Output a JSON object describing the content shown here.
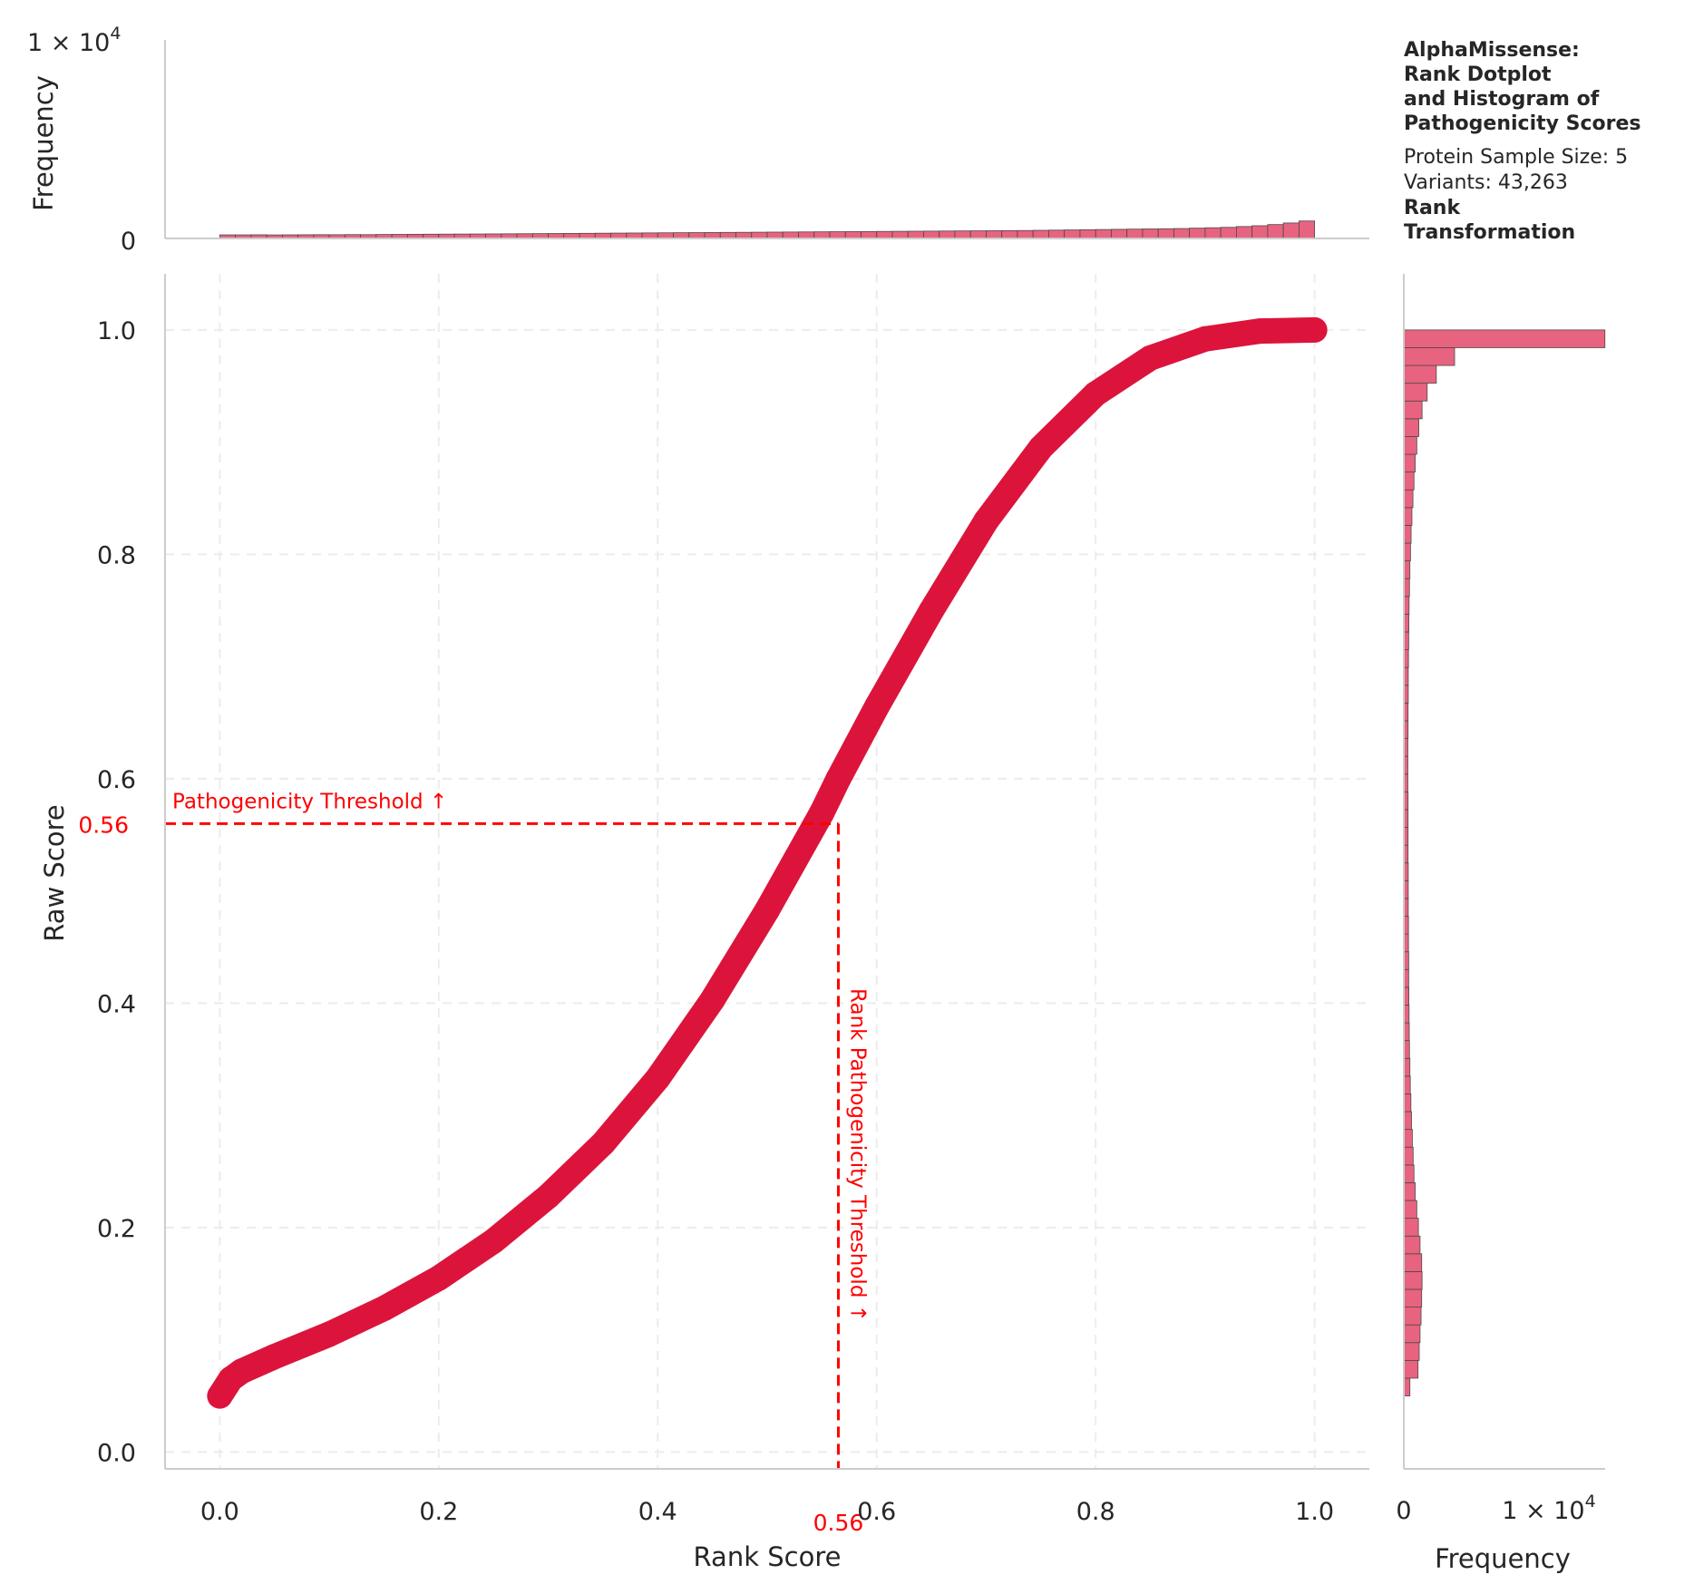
{
  "chart_data": [
    {
      "panel": "main",
      "type": "scatter",
      "xlabel": "Rank Score",
      "ylabel": "Raw Score",
      "xlim": [
        -0.05,
        1.05
      ],
      "ylim": [
        -0.015,
        1.05
      ],
      "xticks": [
        "0.0",
        "0.2",
        "0.4",
        "0.6",
        "0.8",
        "1.0"
      ],
      "yticks": [
        "0.0",
        "0.2",
        "0.4",
        "0.6",
        "0.8",
        "1.0"
      ],
      "grid": true,
      "color": "#dc143c",
      "series": [
        {
          "x": [
            0.0,
            0.01,
            0.02,
            0.05,
            0.1,
            0.15,
            0.2,
            0.25,
            0.3,
            0.35,
            0.4,
            0.45,
            0.5,
            0.55,
            0.565,
            0.6,
            0.65,
            0.7,
            0.75,
            0.8,
            0.85,
            0.9,
            0.95,
            1.0
          ],
          "y": [
            0.05,
            0.065,
            0.072,
            0.085,
            0.105,
            0.128,
            0.155,
            0.188,
            0.228,
            0.275,
            0.333,
            0.403,
            0.483,
            0.57,
            0.6,
            0.664,
            0.75,
            0.83,
            0.895,
            0.943,
            0.975,
            0.992,
            0.999,
            1.0
          ]
        }
      ],
      "threshold": {
        "value": 0.56,
        "value_label": "0.56",
        "rank_value": 0.565,
        "rank_value_label": "0.56",
        "horizontal_label": "Pathogenicity Threshold ↑",
        "vertical_label": "Rank Pathogenicity Threshold ↑",
        "color": "#ff0000"
      }
    },
    {
      "panel": "top-histogram",
      "type": "bar",
      "xlabel": "",
      "ylabel": "Frequency",
      "ylim": [
        0,
        10000
      ],
      "yticks": [
        "0"
      ],
      "offset_label": "1 × 10",
      "offset_exp": "4",
      "bin_range": [
        0,
        1
      ],
      "values": [
        180,
        180,
        185,
        178,
        182,
        186,
        190,
        188,
        195,
        192,
        200,
        205,
        210,
        215,
        218,
        222,
        225,
        230,
        235,
        240,
        245,
        250,
        255,
        260,
        265,
        270,
        275,
        280,
        285,
        290,
        295,
        300,
        305,
        310,
        315,
        320,
        325,
        330,
        335,
        340,
        345,
        350,
        355,
        360,
        365,
        370,
        375,
        380,
        385,
        390,
        395,
        400,
        410,
        420,
        430,
        440,
        450,
        460,
        470,
        480,
        490,
        500,
        520,
        540,
        560,
        600,
        640,
        700,
        780,
        880
      ],
      "color": "#e8637f",
      "edge_color": "#4a4a4a"
    },
    {
      "panel": "right-histogram",
      "type": "bar",
      "orientation": "horizontal",
      "xlabel": "Frequency",
      "ylabel": "",
      "xlim": [
        0,
        10000
      ],
      "xticks": [
        "0"
      ],
      "offset_label": "1 × 10",
      "offset_exp": "4",
      "bin_range": [
        0.05,
        1.0
      ],
      "values": [
        300,
        700,
        760,
        800,
        850,
        880,
        900,
        880,
        800,
        720,
        640,
        560,
        500,
        460,
        420,
        380,
        350,
        320,
        300,
        280,
        270,
        260,
        250,
        240,
        240,
        230,
        230,
        220,
        220,
        220,
        210,
        210,
        210,
        210,
        200,
        200,
        200,
        210,
        210,
        220,
        220,
        230,
        240,
        250,
        260,
        280,
        300,
        330,
        360,
        400,
        450,
        500,
        560,
        640,
        740,
        900,
        1150,
        1600,
        2500,
        9900
      ],
      "color": "#e8637f",
      "edge_color": "#4a4a4a"
    }
  ],
  "title_block": {
    "title": "AlphaMissense:\nRank Dotplot\nand Histogram of\nPathogenicity Scores",
    "sample_size": "Protein Sample Size: 5",
    "variants": "Variants: 43,263",
    "transformation": "Rank\nTransformation"
  }
}
